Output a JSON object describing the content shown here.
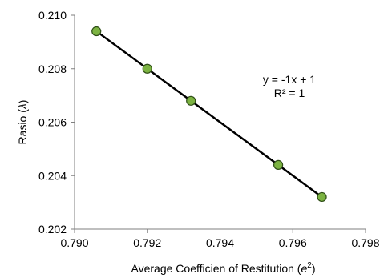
{
  "chart_data": {
    "type": "scatter",
    "xlabel": {
      "prefix": "Average Coefficien of Restitution (",
      "symbol": "e",
      "sup": "2",
      "suffix": ")"
    },
    "ylabel": {
      "prefix": "Rasio (",
      "symbol": "λ",
      "suffix": ")"
    },
    "xlim": [
      0.79,
      0.798
    ],
    "ylim": [
      0.202,
      0.21
    ],
    "x_ticks": [
      "0.790",
      "0.792",
      "0.794",
      "0.796",
      "0.798"
    ],
    "y_ticks": [
      "0.202",
      "0.204",
      "0.206",
      "0.208",
      "0.210"
    ],
    "grid": false,
    "points": [
      {
        "x": 0.7906,
        "y": 0.2094
      },
      {
        "x": 0.792,
        "y": 0.208
      },
      {
        "x": 0.7932,
        "y": 0.2068
      },
      {
        "x": 0.7956,
        "y": 0.2044
      },
      {
        "x": 0.7968,
        "y": 0.2032
      }
    ],
    "trendline": {
      "x": [
        0.7906,
        0.7968
      ],
      "y": [
        0.2094,
        0.2032
      ],
      "color": "#000000"
    },
    "marker_fill": "#7cb342",
    "marker_stroke": "#2e4d16",
    "annotations": [
      "y = -1x + 1",
      "R² = 1"
    ]
  }
}
